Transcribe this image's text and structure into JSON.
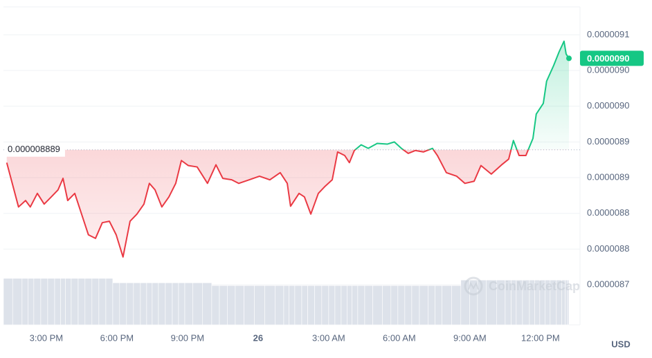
{
  "chart_data": {
    "type": "line",
    "x": [
      13.32,
      13.82,
      14.12,
      14.32,
      14.62,
      14.91,
      15.21,
      15.5,
      15.71,
      15.91,
      16.21,
      16.5,
      16.79,
      17.09,
      17.38,
      17.68,
      17.97,
      18.26,
      18.56,
      18.85,
      19.15,
      19.38,
      19.62,
      19.91,
      20.21,
      20.5,
      20.74,
      21.03,
      21.41,
      21.85,
      22.21,
      22.5,
      22.88,
      23.18,
      23.62,
      24.06,
      24.5,
      24.94,
      25.24,
      25.38,
      25.74,
      25.97,
      26.24,
      26.56,
      26.85,
      27.15,
      27.38,
      27.68,
      27.88,
      28.09,
      28.38,
      28.68,
      29.06,
      29.5,
      29.79,
      30.09,
      30.38,
      30.68,
      31.03,
      31.41,
      31.62,
      32,
      32.44,
      32.79,
      33.18,
      33.47,
      33.91,
      34.35,
      34.65,
      34.85,
      35.09,
      35.38,
      35.68,
      35.82,
      36.12,
      36.26,
      36.56,
      36.79,
      37,
      37.09,
      37.21
    ],
    "values": [
      8.871e-06,
      8.809e-06,
      8.818e-06,
      8.809e-06,
      8.828e-06,
      8.813e-06,
      8.823e-06,
      8.833e-06,
      8.849e-06,
      8.818e-06,
      8.828e-06,
      8.799e-06,
      8.77e-06,
      8.765e-06,
      8.787e-06,
      8.789e-06,
      8.77e-06,
      8.739e-06,
      8.789e-06,
      8.799e-06,
      8.813e-06,
      8.842e-06,
      8.833e-06,
      8.809e-06,
      8.823e-06,
      8.842e-06,
      8.874e-06,
      8.867e-06,
      8.865e-06,
      8.842e-06,
      8.868e-06,
      8.849e-06,
      8.847e-06,
      8.842e-06,
      8.847e-06,
      8.852e-06,
      8.847e-06,
      8.857e-06,
      8.842e-06,
      8.81e-06,
      8.828e-06,
      8.823e-06,
      8.799e-06,
      8.828e-06,
      8.838e-06,
      8.847e-06,
      8.886e-06,
      8.881e-06,
      8.871e-06,
      8.888e-06,
      8.896e-06,
      8.891e-06,
      8.898e-06,
      8.897e-06,
      8.9e-06,
      8.891e-06,
      8.884e-06,
      8.888e-06,
      8.886e-06,
      8.891e-06,
      8.881e-06,
      8.857e-06,
      8.852e-06,
      8.842e-06,
      8.845e-06,
      8.867e-06,
      8.855e-06,
      8.868e-06,
      8.876e-06,
      8.902e-06,
      8.881e-06,
      8.881e-06,
      8.905e-06,
      8.939e-06,
      8.954e-06,
      8.985e-06,
      9.007e-06,
      9.026e-06,
      9.041e-06,
      9.023e-06,
      9.017e-06
    ],
    "volume": {
      "values": [
        84,
        84,
        84,
        84,
        84,
        84,
        84,
        84,
        84,
        84,
        84,
        84,
        84,
        84,
        84,
        84,
        76,
        76,
        76,
        76,
        76,
        76,
        76,
        76,
        76,
        76,
        76,
        76,
        76,
        76,
        71,
        71,
        71,
        71,
        71,
        71,
        71,
        71,
        71,
        71,
        71,
        71,
        71,
        71,
        71,
        71,
        71,
        71,
        71,
        71,
        71,
        71,
        71,
        71,
        71,
        71,
        71,
        71,
        71,
        71,
        71,
        71,
        71,
        81,
        81,
        81,
        81,
        81,
        81,
        81,
        81,
        81,
        81,
        81,
        81,
        81,
        81,
        81,
        81,
        81,
        81
      ],
      "ylim": [
        0,
        100
      ],
      "color": "#dde2ea"
    },
    "up_color": "#16c784",
    "down_color": "#ea3943",
    "reference": {
      "value": 8.889e-06,
      "label": "0.000008889"
    },
    "last_price": {
      "value": 9.017e-06,
      "label": "0.0000090"
    },
    "xlim": [
      13.18,
      37.68
    ],
    "xticks": [
      {
        "value": 15,
        "label": "3:00 PM"
      },
      {
        "value": 18,
        "label": "6:00 PM"
      },
      {
        "value": 21,
        "label": "9:00 PM"
      },
      {
        "value": 24,
        "label": "26"
      },
      {
        "value": 27,
        "label": "3:00 AM"
      },
      {
        "value": 30,
        "label": "6:00 AM"
      },
      {
        "value": 33,
        "label": "9:00 AM"
      },
      {
        "value": 36,
        "label": "12:00 PM"
      }
    ],
    "ylim": [
      8.644e-06,
      9.089e-06
    ],
    "yticks": [
      {
        "value": 8.7e-06,
        "label": "0.0000087"
      },
      {
        "value": 8.75e-06,
        "label": "0.0000088"
      },
      {
        "value": 8.8e-06,
        "label": "0.0000088"
      },
      {
        "value": 8.85e-06,
        "label": "0.0000089"
      },
      {
        "value": 8.9e-06,
        "label": "0.0000089"
      },
      {
        "value": 8.95e-06,
        "label": "0.0000090"
      },
      {
        "value": 9e-06,
        "label": "0.0000090"
      },
      {
        "value": 9.05e-06,
        "label": "0.0000091"
      }
    ],
    "grid": true,
    "currency": "USD",
    "watermark": "CoinMarketCap"
  }
}
